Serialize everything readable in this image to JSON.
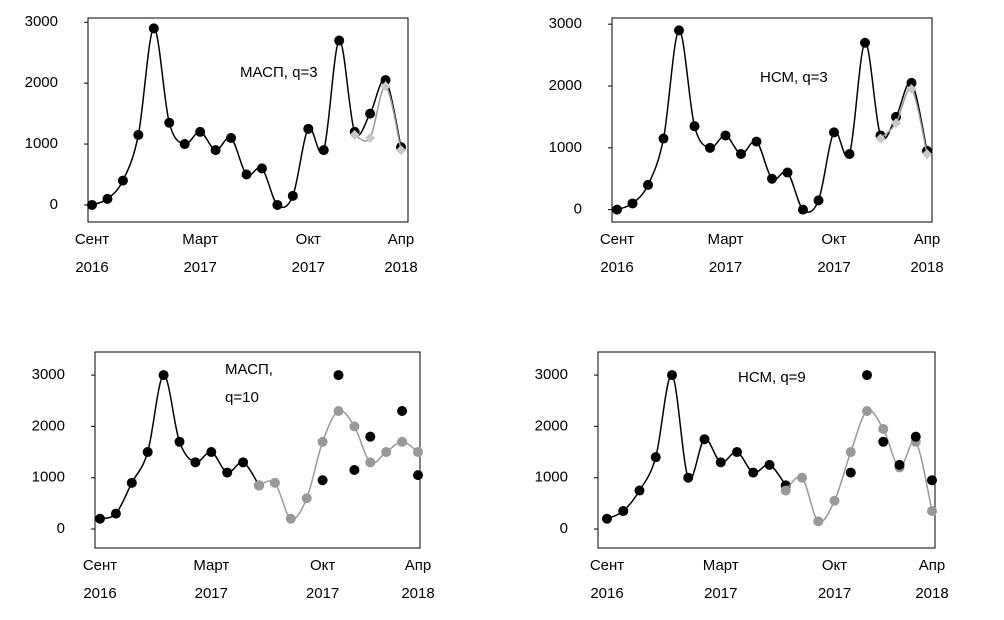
{
  "chart_data": [
    {
      "type": "line",
      "annotation": [
        "МАСП, q=3"
      ],
      "categories": [
        "Сент",
        null,
        null,
        null,
        null,
        null,
        null,
        "Март",
        null,
        null,
        null,
        null,
        null,
        null,
        "Окт",
        null,
        null,
        null,
        null,
        null,
        "Апр"
      ],
      "category_years": [
        "2016",
        null,
        null,
        null,
        null,
        null,
        null,
        "2017",
        null,
        null,
        null,
        null,
        null,
        null,
        "2017",
        null,
        null,
        null,
        null,
        null,
        "2018"
      ],
      "ylim": [
        -280,
        3070
      ],
      "yticks": [
        0,
        1000,
        2000,
        3000
      ],
      "series": [
        {
          "color": "#000000",
          "style": "line",
          "marker": "circle",
          "values": [
            0,
            100,
            400,
            1150,
            2900,
            1350,
            1000,
            1200,
            900,
            1100,
            500,
            600,
            0,
            150,
            1250,
            900,
            2700,
            1200,
            1500,
            2050,
            950
          ]
        },
        {
          "color": "#999999",
          "style": "line",
          "marker": "diamond",
          "values": [
            null,
            null,
            null,
            null,
            null,
            null,
            null,
            null,
            null,
            null,
            null,
            null,
            null,
            null,
            null,
            null,
            null,
            1150,
            1100,
            1950,
            900
          ]
        }
      ]
    },
    {
      "type": "line",
      "annotation": [
        "НСМ, q=3"
      ],
      "categories": [
        "Сент",
        null,
        null,
        null,
        null,
        null,
        null,
        "Март",
        null,
        null,
        null,
        null,
        null,
        null,
        "Окт",
        null,
        null,
        null,
        null,
        null,
        "Апр"
      ],
      "category_years": [
        "2016",
        null,
        null,
        null,
        null,
        null,
        null,
        "2017",
        null,
        null,
        null,
        null,
        null,
        null,
        "2017",
        null,
        null,
        null,
        null,
        null,
        "2018"
      ],
      "ylim": [
        -200,
        3100
      ],
      "yticks": [
        0,
        1000,
        2000,
        3000
      ],
      "series": [
        {
          "color": "#000000",
          "style": "line",
          "marker": "circle",
          "values": [
            0,
            100,
            400,
            1150,
            2900,
            1350,
            1000,
            1200,
            900,
            1100,
            500,
            600,
            0,
            150,
            1250,
            900,
            2700,
            1200,
            1500,
            2050,
            950
          ]
        },
        {
          "color": "#999999",
          "style": "line",
          "marker": "diamond",
          "values": [
            null,
            null,
            null,
            null,
            null,
            null,
            null,
            null,
            null,
            null,
            null,
            null,
            null,
            null,
            null,
            null,
            null,
            1150,
            1400,
            1950,
            900
          ]
        }
      ]
    },
    {
      "type": "line",
      "annotation": [
        "МАСП,",
        "q=10"
      ],
      "categories": [
        "Сент",
        null,
        null,
        null,
        null,
        null,
        null,
        "Март",
        null,
        null,
        null,
        null,
        null,
        null,
        "Окт",
        null,
        null,
        null,
        null,
        null,
        "Апр"
      ],
      "category_years": [
        "2016",
        null,
        null,
        null,
        null,
        null,
        null,
        "2017",
        null,
        null,
        null,
        null,
        null,
        null,
        "2017",
        null,
        null,
        null,
        null,
        null,
        "2018"
      ],
      "ylim": [
        -370,
        3450
      ],
      "yticks": [
        0,
        1000,
        2000,
        3000
      ],
      "series": [
        {
          "color": "#000000",
          "style": "line",
          "marker": "circle",
          "values": [
            200,
            300,
            900,
            1500,
            3000,
            1700,
            1300,
            1500,
            1100,
            1300,
            850,
            null,
            null,
            null,
            null,
            null,
            null,
            null,
            null,
            null,
            null
          ]
        },
        {
          "color": "#999999",
          "style": "line",
          "marker": "circle",
          "values": [
            null,
            null,
            null,
            null,
            null,
            null,
            null,
            null,
            null,
            null,
            850,
            900,
            200,
            600,
            1700,
            2300,
            2000,
            1300,
            1500,
            1700,
            1500
          ]
        },
        {
          "color": "#000000",
          "style": "markers",
          "marker": "circle",
          "values": [
            null,
            null,
            null,
            null,
            null,
            null,
            null,
            null,
            null,
            null,
            null,
            null,
            null,
            null,
            950,
            3000,
            1150,
            1800,
            null,
            2300,
            1050
          ]
        }
      ]
    },
    {
      "type": "line",
      "annotation": [
        "НСМ, q=9"
      ],
      "categories": [
        "Сент",
        null,
        null,
        null,
        null,
        null,
        null,
        "Март",
        null,
        null,
        null,
        null,
        null,
        null,
        "Окт",
        null,
        null,
        null,
        null,
        null,
        "Апр"
      ],
      "category_years": [
        "2016",
        null,
        null,
        null,
        null,
        null,
        null,
        "2017",
        null,
        null,
        null,
        null,
        null,
        null,
        "2017",
        null,
        null,
        null,
        null,
        null,
        "2018"
      ],
      "ylim": [
        -370,
        3450
      ],
      "yticks": [
        0,
        1000,
        2000,
        3000
      ],
      "series": [
        {
          "color": "#000000",
          "style": "line",
          "marker": "circle",
          "values": [
            200,
            350,
            750,
            1400,
            3000,
            1000,
            1750,
            1300,
            1500,
            1100,
            1250,
            850,
            null,
            null,
            null,
            null,
            null,
            null,
            null,
            null,
            null
          ]
        },
        {
          "color": "#999999",
          "style": "line",
          "marker": "circle",
          "values": [
            null,
            null,
            null,
            null,
            null,
            null,
            null,
            null,
            null,
            null,
            null,
            750,
            1000,
            150,
            550,
            1500,
            2300,
            1950,
            1200,
            1700,
            350
          ]
        },
        {
          "color": "#000000",
          "style": "markers",
          "marker": "circle",
          "values": [
            null,
            null,
            null,
            null,
            null,
            null,
            null,
            null,
            null,
            null,
            null,
            null,
            null,
            null,
            null,
            1100,
            3000,
            1700,
            1250,
            1800,
            950
          ]
        }
      ]
    }
  ]
}
